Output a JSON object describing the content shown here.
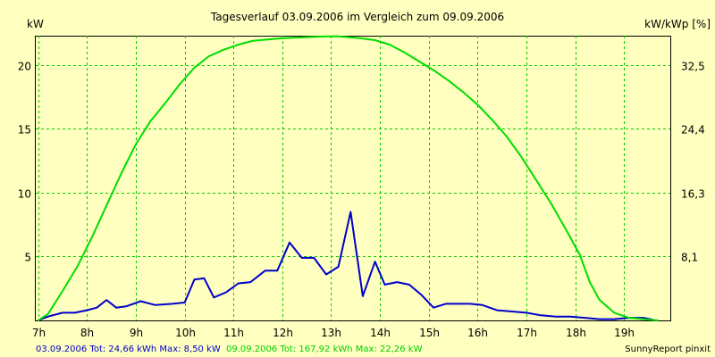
{
  "chart_data": {
    "type": "line",
    "title": "Tagesverlauf 03.09.2006 im Vergleich zum 09.09.2006",
    "ylabel_left": "kW",
    "ylabel_right": "kW/kWp [%]",
    "x_ticks": [
      "7h",
      "8h",
      "9h",
      "10h",
      "11h",
      "12h",
      "13h",
      "14h",
      "15h",
      "16h",
      "17h",
      "18h",
      "19h"
    ],
    "x_range": [
      6.95,
      19.95
    ],
    "y_ticks_left": [
      "5",
      "10",
      "15",
      "20"
    ],
    "y_ticks_right": [
      "8,1",
      "16,3",
      "24,4",
      "32,5"
    ],
    "ylim_left": [
      0,
      22.3
    ],
    "grid": true,
    "series": [
      {
        "name": "03.09.2006",
        "color": "#0000cc",
        "x": [
          7.0,
          7.2,
          7.5,
          7.75,
          8.0,
          8.2,
          8.4,
          8.6,
          8.8,
          9.1,
          9.4,
          9.75,
          10.0,
          10.2,
          10.4,
          10.6,
          10.85,
          11.1,
          11.35,
          11.65,
          11.9,
          12.15,
          12.4,
          12.65,
          12.9,
          13.15,
          13.4,
          13.65,
          13.9,
          14.1,
          14.35,
          14.6,
          14.85,
          15.1,
          15.35,
          15.6,
          15.85,
          16.1,
          16.4,
          16.7,
          17.0,
          17.3,
          17.6,
          17.9,
          18.2,
          18.5,
          18.8,
          19.1,
          19.4,
          19.6
        ],
        "y": [
          0,
          0.3,
          0.6,
          0.6,
          0.8,
          1.0,
          1.6,
          1.0,
          1.1,
          1.5,
          1.2,
          1.3,
          1.4,
          3.2,
          3.3,
          1.8,
          2.2,
          2.9,
          3.0,
          3.9,
          3.9,
          6.1,
          4.9,
          4.9,
          3.6,
          4.2,
          8.5,
          1.9,
          4.6,
          2.8,
          3.0,
          2.8,
          2.0,
          1.0,
          1.3,
          1.3,
          1.3,
          1.2,
          0.8,
          0.7,
          0.6,
          0.4,
          0.3,
          0.3,
          0.2,
          0.1,
          0.1,
          0.2,
          0.2,
          0.05
        ]
      },
      {
        "name": "09.09.2006",
        "color": "#00dd00",
        "x": [
          7.0,
          7.2,
          7.5,
          7.8,
          8.1,
          8.4,
          8.7,
          9.0,
          9.3,
          9.6,
          9.9,
          10.2,
          10.5,
          10.8,
          11.1,
          11.4,
          11.7,
          12.0,
          12.3,
          12.6,
          12.9,
          13.1,
          13.3,
          13.6,
          13.9,
          14.2,
          14.5,
          14.8,
          15.1,
          15.4,
          15.7,
          16.0,
          16.3,
          16.6,
          16.9,
          17.2,
          17.5,
          17.8,
          18.1,
          18.3,
          18.5,
          18.8,
          19.1,
          19.4,
          19.7
        ],
        "y": [
          0,
          0.5,
          2.3,
          4.2,
          6.5,
          9.0,
          11.5,
          13.8,
          15.6,
          17.0,
          18.5,
          19.8,
          20.7,
          21.2,
          21.6,
          21.9,
          22.0,
          22.1,
          22.15,
          22.2,
          22.25,
          22.26,
          22.2,
          22.1,
          21.95,
          21.6,
          21.0,
          20.3,
          19.6,
          18.8,
          17.9,
          16.9,
          15.7,
          14.4,
          12.8,
          11.0,
          9.2,
          7.2,
          5.1,
          3.0,
          1.6,
          0.6,
          0.2,
          0.1,
          0
        ]
      }
    ]
  },
  "footer": {
    "series1_text": "03.09.2006 Tot: 24,66 kWh Max: 8,50 kW",
    "series2_text": "09.09.2006 Tot: 167,92 kWh Max: 22,26 kW",
    "credit": "SunnyReport pinxit"
  }
}
